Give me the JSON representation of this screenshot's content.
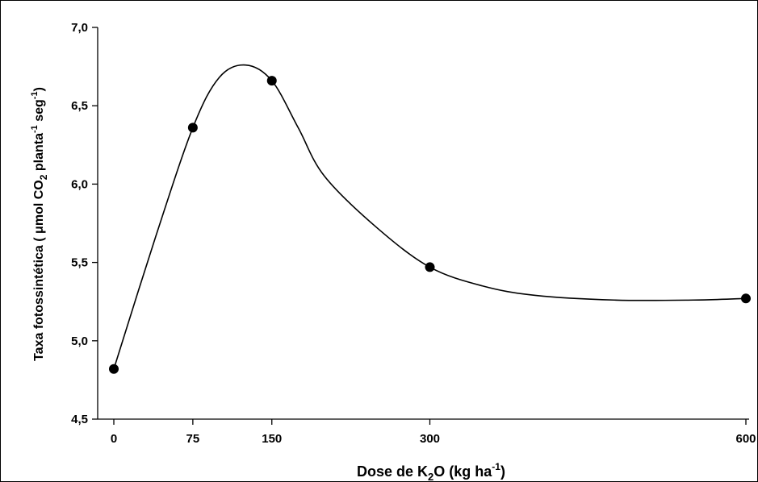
{
  "chart_data": {
    "type": "line",
    "title": "",
    "xlabel": {
      "prefix": "Dose de K",
      "sub": "2",
      "mid": "O (kg ha",
      "sup": "-1",
      "suffix": ")"
    },
    "ylabel": {
      "prefix": "Taxa fotossintética ( ",
      "mu": "μ",
      "part2": "mol CO",
      "sub": "2",
      "part3": " planta",
      "sup1": "-1",
      "part4": " seg",
      "sup2": "-1",
      "suffix": ")"
    },
    "xlim": [
      0,
      600
    ],
    "ylim": [
      4.5,
      7.0
    ],
    "x_ticks": [
      0,
      75,
      150,
      300,
      600
    ],
    "x_tick_labels": [
      "0",
      "75",
      "150",
      "300",
      "600"
    ],
    "y_ticks": [
      4.5,
      5.0,
      5.5,
      6.0,
      6.5,
      7.0
    ],
    "y_tick_labels": [
      "4,5",
      "5,0",
      "5,5",
      "6,0",
      "6,5",
      "7,0"
    ],
    "points": [
      {
        "x": 0,
        "y": 4.82
      },
      {
        "x": 75,
        "y": 6.36
      },
      {
        "x": 150,
        "y": 6.66
      },
      {
        "x": 300,
        "y": 5.47
      },
      {
        "x": 600,
        "y": 5.27
      }
    ],
    "curve": [
      {
        "x": 0,
        "y": 4.82
      },
      {
        "x": 40,
        "y": 5.67
      },
      {
        "x": 75,
        "y": 6.36
      },
      {
        "x": 100,
        "y": 6.68
      },
      {
        "x": 125,
        "y": 6.76
      },
      {
        "x": 150,
        "y": 6.66
      },
      {
        "x": 175,
        "y": 6.36
      },
      {
        "x": 200,
        "y": 6.05
      },
      {
        "x": 250,
        "y": 5.72
      },
      {
        "x": 300,
        "y": 5.47
      },
      {
        "x": 350,
        "y": 5.35
      },
      {
        "x": 400,
        "y": 5.29
      },
      {
        "x": 475,
        "y": 5.26
      },
      {
        "x": 550,
        "y": 5.26
      },
      {
        "x": 600,
        "y": 5.27
      }
    ],
    "grid": false,
    "legend": "none"
  }
}
